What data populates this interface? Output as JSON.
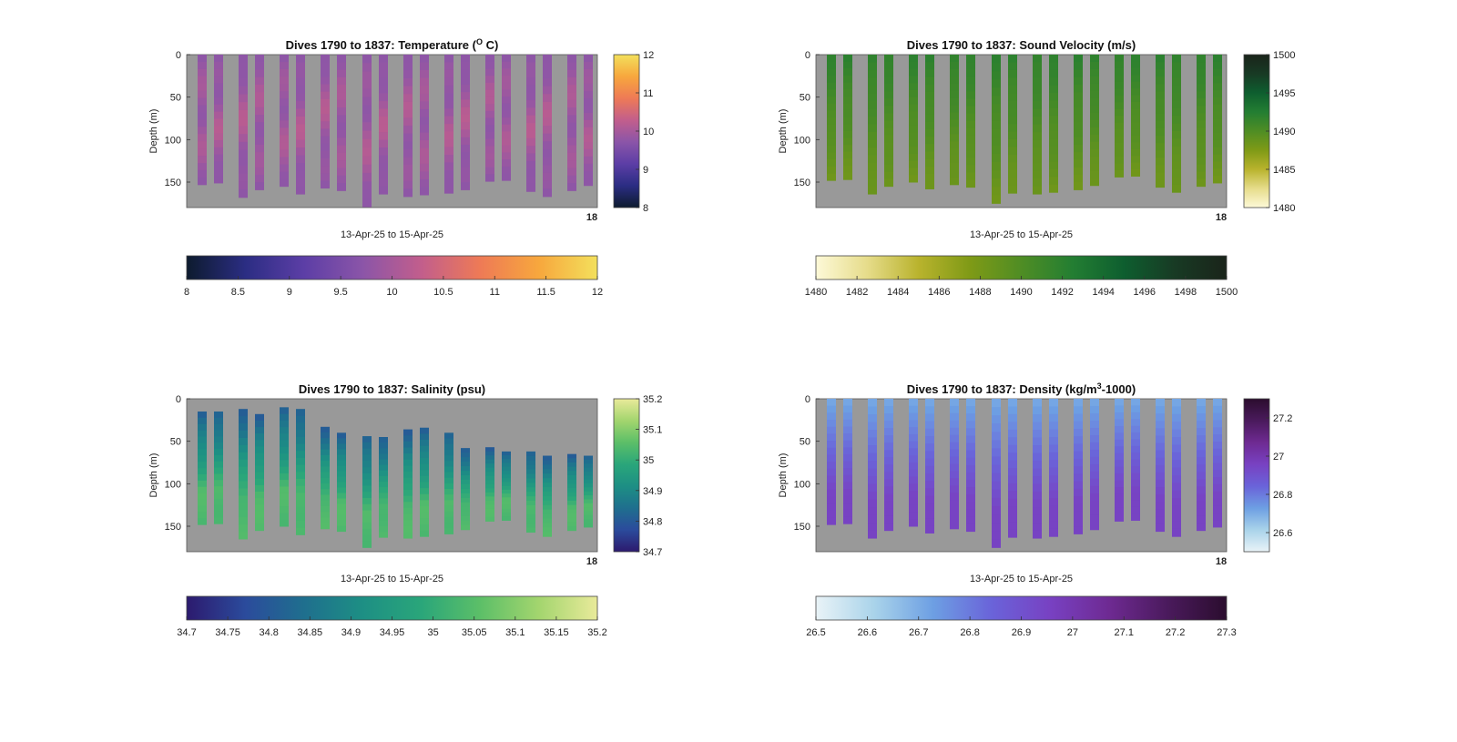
{
  "chart_data": [
    {
      "type": "heatmap",
      "title": "Dives 1790 to 1837: Temperature (",
      "title_sup": "O",
      "title_tail": " C)",
      "xlabel": "13-Apr-25 to 15-Apr-25",
      "ylabel": "Depth (m)",
      "ylim": [
        0,
        180
      ],
      "yticks": [
        "0",
        "50",
        "100",
        "150"
      ],
      "xtick_labels": [
        "18"
      ],
      "side_colorbar": {
        "range": [
          8,
          12
        ],
        "ticks": [
          "8",
          "9",
          "10",
          "11",
          "12"
        ]
      },
      "bottom_colorbar": {
        "range": [
          8,
          12
        ],
        "ticks": [
          "8",
          "8.5",
          "9",
          "9.5",
          "10",
          "10.5",
          "11",
          "11.5",
          "12"
        ]
      },
      "colormap": [
        "#0d1b2e",
        "#2b2d83",
        "#5c3ea6",
        "#8b55a8",
        "#c25e8c",
        "#ee7a56",
        "#f7a73d",
        "#f3e05c"
      ],
      "dive_bottoms_m": [
        153,
        151,
        168,
        159,
        155,
        164,
        157,
        160,
        179,
        164,
        167,
        165,
        163,
        159,
        149,
        148,
        161,
        167,
        160,
        154
      ],
      "dive_tops_m": [
        0,
        0,
        0,
        0,
        0,
        0,
        0,
        0,
        0,
        0,
        0,
        0,
        0,
        0,
        0,
        0,
        0,
        0,
        0,
        0
      ],
      "value_range_shown": [
        9.4,
        10.4
      ]
    },
    {
      "type": "heatmap",
      "title": "Dives 1790 to 1837: Sound Velocity (m/s)",
      "xlabel": "13-Apr-25 to 15-Apr-25",
      "ylabel": "Depth (m)",
      "ylim": [
        0,
        180
      ],
      "yticks": [
        "0",
        "50",
        "100",
        "150"
      ],
      "xtick_labels": [
        "18"
      ],
      "side_colorbar": {
        "range": [
          1480,
          1500
        ],
        "ticks": [
          "1480",
          "1485",
          "1490",
          "1495",
          "1500"
        ]
      },
      "bottom_colorbar": {
        "range": [
          1480,
          1500
        ],
        "ticks": [
          "1480",
          "1482",
          "1484",
          "1486",
          "1488",
          "1490",
          "1492",
          "1494",
          "1496",
          "1498",
          "1500"
        ]
      },
      "colormap": [
        "#fdf9d8",
        "#e6dc8a",
        "#b9b32d",
        "#7f9a16",
        "#4f8d24",
        "#237e32",
        "#0e5e2f",
        "#183a24",
        "#1a241a"
      ],
      "dive_bottoms_m": [
        148,
        147,
        164,
        155,
        150,
        158,
        153,
        156,
        175,
        163,
        164,
        162,
        159,
        154,
        144,
        143,
        156,
        162,
        155,
        151
      ],
      "dive_tops_m": [
        0,
        0,
        0,
        0,
        0,
        0,
        0,
        0,
        0,
        0,
        0,
        0,
        0,
        0,
        0,
        0,
        0,
        0,
        0,
        0
      ],
      "value_range_shown": [
        1488,
        1492.5
      ]
    },
    {
      "type": "heatmap",
      "title": "Dives 1790 to 1837: Salinity (psu)",
      "xlabel": "13-Apr-25 to 15-Apr-25",
      "ylabel": "Depth (m)",
      "ylim": [
        0,
        180
      ],
      "yticks": [
        "0",
        "50",
        "100",
        "150"
      ],
      "xtick_labels": [
        "18"
      ],
      "side_colorbar": {
        "range": [
          34.7,
          35.2
        ],
        "ticks": [
          "34.7",
          "34.8",
          "34.9",
          "35",
          "35.1",
          "35.2"
        ]
      },
      "bottom_colorbar": {
        "range": [
          34.7,
          35.2
        ],
        "ticks": [
          "34.7",
          "34.75",
          "34.8",
          "34.85",
          "34.9",
          "34.95",
          "35",
          "35.05",
          "35.1",
          "35.15",
          "35.2"
        ]
      },
      "colormap": [
        "#2c1a6e",
        "#2b4b9c",
        "#1f6f8e",
        "#1d8f84",
        "#2aa67a",
        "#5cbf68",
        "#a3d56e",
        "#e9ea9a"
      ],
      "dive_bottoms_m": [
        148,
        147,
        165,
        155,
        150,
        160,
        153,
        156,
        175,
        163,
        164,
        162,
        159,
        154,
        144,
        143,
        157,
        162,
        155,
        151
      ],
      "dive_tops_m": [
        15,
        15,
        12,
        18,
        10,
        12,
        33,
        40,
        44,
        45,
        36,
        34,
        40,
        58,
        57,
        62,
        62,
        67,
        65,
        67
      ],
      "value_range_shown": [
        34.8,
        35.05
      ]
    },
    {
      "type": "heatmap",
      "title": "Dives 1790 to 1837: Density (kg/m",
      "title_sup": "3",
      "title_tail": "-1000)",
      "xlabel": "13-Apr-25 to 15-Apr-25",
      "ylabel": "Depth (m)",
      "ylim": [
        0,
        180
      ],
      "yticks": [
        "0",
        "50",
        "100",
        "150"
      ],
      "xtick_labels": [
        "18"
      ],
      "side_colorbar": {
        "range": [
          26.5,
          27.3
        ],
        "ticks": [
          "26.6",
          "26.8",
          "27",
          "27.2"
        ],
        "tick_values": [
          26.6,
          26.8,
          27.0,
          27.2
        ]
      },
      "bottom_colorbar": {
        "range": [
          26.5,
          27.3
        ],
        "ticks": [
          "26.5",
          "26.6",
          "26.7",
          "26.8",
          "26.9",
          "27",
          "27.1",
          "27.2",
          "27.3"
        ]
      },
      "colormap": [
        "#e9f3f7",
        "#a9d3ea",
        "#6d9fe3",
        "#6a63d9",
        "#7841c2",
        "#6e2a92",
        "#4a1a5c",
        "#2b0d2e"
      ],
      "dive_bottoms_m": [
        148,
        147,
        164,
        155,
        150,
        158,
        153,
        156,
        175,
        163,
        164,
        162,
        159,
        154,
        144,
        143,
        156,
        162,
        155,
        151
      ],
      "dive_tops_m": [
        0,
        0,
        0,
        0,
        0,
        0,
        0,
        0,
        0,
        0,
        0,
        0,
        0,
        0,
        0,
        0,
        0,
        0,
        0,
        0
      ],
      "value_range_shown": [
        26.7,
        26.95
      ]
    }
  ]
}
